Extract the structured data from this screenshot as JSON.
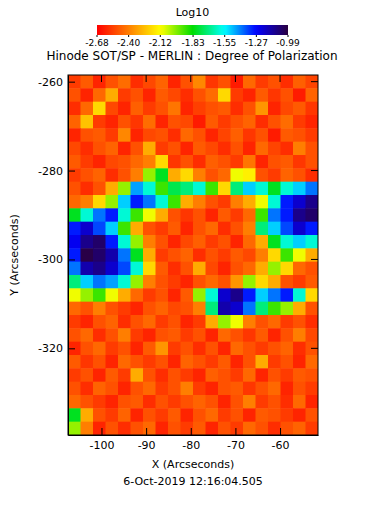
{
  "chart_data": {
    "type": "heatmap",
    "title": "Hinode SOT/SP - MERLIN : Degree of Polarization",
    "xlabel": "X (Arcseconds)",
    "ylabel": "Y (Arcseconds)",
    "annotation": "6-Oct-2019 12:16:04.505",
    "xlim": [
      -107.5,
      -51.5
    ],
    "ylim": [
      -339.5,
      -258.5
    ],
    "xticks": [
      -100,
      -90,
      -80,
      -70,
      -60
    ],
    "yticks": [
      -260,
      -280,
      -300,
      -320
    ],
    "x": [
      -106.1,
      -103.3,
      -100.5,
      -97.7,
      -94.9,
      -92.1,
      -89.3,
      -86.5,
      -83.7,
      -80.9,
      -78.1,
      -75.3,
      -72.5,
      -69.7,
      -66.9,
      -64.1,
      -61.3,
      -58.5,
      -55.7,
      -52.9
    ],
    "y": [
      -260,
      -263,
      -266,
      -269,
      -272,
      -275,
      -278,
      -281,
      -284,
      -287,
      -290,
      -293,
      -296,
      -299,
      -302,
      -305,
      -308,
      -311,
      -314,
      -317,
      -320,
      -323,
      -326,
      -329,
      -332,
      -335,
      -338
    ],
    "z": [
      [
        -2.55,
        -2.48,
        -2.6,
        -2.5,
        -2.44,
        -2.58,
        -2.52,
        -2.46,
        -2.6,
        -2.5,
        -2.38,
        -2.56,
        -2.5,
        -2.62,
        -2.45,
        -2.55,
        -2.5,
        -2.58,
        -2.47,
        -2.53
      ],
      [
        -2.5,
        -2.6,
        -2.45,
        -2.3,
        -2.55,
        -2.5,
        -2.6,
        -2.48,
        -2.52,
        -2.58,
        -2.5,
        -2.44,
        -2.2,
        -2.55,
        -2.6,
        -2.48,
        -2.56,
        -2.5,
        -2.62,
        -2.46
      ],
      [
        -2.58,
        -2.45,
        -2.2,
        -2.52,
        -2.6,
        -2.47,
        -2.55,
        -2.5,
        -2.42,
        -2.6,
        -2.54,
        -2.5,
        -2.48,
        -2.58,
        -2.5,
        -2.35,
        -2.6,
        -2.52,
        -2.48,
        -2.56
      ],
      [
        -2.46,
        -2.25,
        -2.55,
        -2.6,
        -2.5,
        -2.56,
        -2.44,
        -2.6,
        -2.5,
        -2.52,
        -2.62,
        -2.48,
        -2.55,
        -2.5,
        -2.46,
        -2.58,
        -2.5,
        -2.44,
        -2.55,
        -2.6
      ],
      [
        -2.6,
        -2.5,
        -2.48,
        -2.55,
        -2.38,
        -2.6,
        -2.52,
        -2.5,
        -2.58,
        -2.45,
        -2.5,
        -2.6,
        -2.53,
        -2.47,
        -2.56,
        -2.5,
        -2.62,
        -2.48,
        -2.5,
        -2.55
      ],
      [
        -2.52,
        -2.58,
        -2.5,
        -2.46,
        -2.6,
        -2.5,
        -2.3,
        -2.55,
        -2.5,
        -2.6,
        -2.48,
        -2.52,
        -2.58,
        -2.5,
        -2.6,
        -2.45,
        -2.53,
        -2.58,
        -2.4,
        -2.5
      ],
      [
        -2.48,
        -2.55,
        -2.6,
        -2.52,
        -2.5,
        -2.45,
        -2.4,
        -2.2,
        -2.56,
        -2.5,
        -2.58,
        -2.47,
        -2.5,
        -2.55,
        -2.42,
        -2.6,
        -2.5,
        -2.48,
        -2.56,
        -2.5
      ],
      [
        -2.55,
        -2.5,
        -2.46,
        -2.58,
        -2.5,
        -2.4,
        -2.0,
        -1.8,
        -2.3,
        -2.2,
        -2.4,
        -2.5,
        -2.45,
        -2.1,
        -2.15,
        -2.5,
        -2.55,
        -2.46,
        -2.5,
        -2.58
      ],
      [
        -2.5,
        -2.58,
        -2.5,
        -2.3,
        -2.0,
        -1.45,
        -1.6,
        -1.9,
        -1.75,
        -1.7,
        -1.6,
        -1.9,
        -2.2,
        -1.7,
        -1.5,
        -1.6,
        -1.8,
        -1.6,
        -1.5,
        -1.4
      ],
      [
        -2.45,
        -2.4,
        -2.2,
        -2.0,
        -1.5,
        -1.3,
        -1.4,
        -1.6,
        -1.9,
        -2.3,
        -2.4,
        -2.5,
        -2.55,
        -2.4,
        -2.3,
        -2.1,
        -1.6,
        -1.3,
        -1.2,
        -1.1
      ],
      [
        -1.8,
        -1.6,
        -1.4,
        -1.3,
        -1.6,
        -1.9,
        -2.1,
        -2.3,
        -2.5,
        -2.56,
        -2.5,
        -2.6,
        -2.48,
        -2.55,
        -2.45,
        -1.9,
        -1.4,
        -1.3,
        -1.1,
        -1.05
      ],
      [
        -1.3,
        -1.2,
        -1.35,
        -1.5,
        -1.9,
        -2.3,
        -2.5,
        -2.55,
        -2.48,
        -2.6,
        -2.5,
        -2.45,
        -2.58,
        -2.5,
        -2.4,
        -1.7,
        -1.5,
        -1.35,
        -1.2,
        -1.3
      ],
      [
        -1.25,
        -1.1,
        -1.05,
        -1.3,
        -1.6,
        -2.0,
        -2.4,
        -2.5,
        -2.6,
        -2.52,
        -2.47,
        -2.55,
        -2.5,
        -2.6,
        -2.45,
        -2.3,
        -1.8,
        -1.6,
        -1.5,
        -1.6
      ],
      [
        -1.3,
        -1.0,
        -1.05,
        -1.15,
        -1.4,
        -1.8,
        -2.3,
        -2.55,
        -2.5,
        -2.46,
        -2.58,
        -2.5,
        -2.55,
        -2.48,
        -2.52,
        -2.4,
        -2.2,
        -1.9,
        -2.1,
        -2.3
      ],
      [
        -1.4,
        -1.15,
        -1.1,
        -1.2,
        -1.35,
        -1.6,
        -2.2,
        -2.48,
        -2.58,
        -2.5,
        -2.3,
        -2.52,
        -2.6,
        -2.5,
        -2.45,
        -2.3,
        -2.0,
        -2.2,
        -2.45,
        -2.5
      ],
      [
        -1.7,
        -1.5,
        -1.4,
        -1.45,
        -1.6,
        -2.0,
        -2.4,
        -2.5,
        -2.55,
        -2.6,
        -2.5,
        -2.45,
        -2.5,
        -2.35,
        -2.0,
        -2.2,
        -2.3,
        -2.5,
        -2.55,
        -2.48
      ],
      [
        -2.1,
        -2.0,
        -1.9,
        -2.1,
        -2.3,
        -2.45,
        -2.55,
        -2.5,
        -2.6,
        -2.48,
        -2.0,
        -1.6,
        -1.2,
        -1.1,
        -1.3,
        -1.5,
        -1.4,
        -1.3,
        -1.6,
        -2.2
      ],
      [
        -2.45,
        -2.5,
        -2.4,
        -2.5,
        -2.55,
        -2.6,
        -2.5,
        -2.46,
        -2.52,
        -2.5,
        -2.4,
        -1.7,
        -1.15,
        -1.2,
        -1.4,
        -1.7,
        -1.9,
        -2.0,
        -2.3,
        -2.5
      ],
      [
        -2.55,
        -2.6,
        -2.5,
        -2.46,
        -2.58,
        -2.5,
        -2.45,
        -2.55,
        -2.5,
        -2.6,
        -2.55,
        -2.3,
        -2.0,
        -2.1,
        -2.4,
        -2.5,
        -2.45,
        -2.55,
        -2.5,
        -2.58
      ],
      [
        -2.5,
        -2.45,
        -2.58,
        -2.5,
        -2.4,
        -2.55,
        -2.6,
        -2.5,
        -2.48,
        -2.55,
        -2.5,
        -2.6,
        -2.45,
        -2.5,
        -2.56,
        -2.48,
        -2.6,
        -2.5,
        -2.4,
        -2.52
      ],
      [
        -2.6,
        -2.5,
        -2.45,
        -2.55,
        -2.5,
        -2.6,
        -2.48,
        -2.35,
        -2.55,
        -2.5,
        -2.58,
        -2.5,
        -2.6,
        -2.45,
        -2.5,
        -2.55,
        -2.5,
        -2.46,
        -2.58,
        -2.5
      ],
      [
        -2.48,
        -2.56,
        -2.5,
        -2.6,
        -2.45,
        -2.5,
        -2.55,
        -2.5,
        -2.6,
        -2.46,
        -2.5,
        -2.55,
        -2.48,
        -2.6,
        -2.5,
        -2.3,
        -2.55,
        -2.5,
        -2.6,
        -2.45
      ],
      [
        -2.55,
        -2.5,
        -2.6,
        -2.48,
        -2.55,
        -2.3,
        -2.5,
        -2.58,
        -2.5,
        -2.55,
        -2.6,
        -2.47,
        -2.5,
        -2.55,
        -2.45,
        -2.6,
        -2.5,
        -2.55,
        -2.48,
        -2.5
      ],
      [
        -2.5,
        -2.58,
        -2.46,
        -2.5,
        -2.6,
        -2.5,
        -2.45,
        -2.55,
        -2.5,
        -2.4,
        -2.55,
        -2.6,
        -2.5,
        -2.48,
        -2.56,
        -2.5,
        -2.45,
        -2.6,
        -2.5,
        -2.55
      ],
      [
        -2.45,
        -2.5,
        -2.55,
        -2.6,
        -2.5,
        -2.48,
        -2.58,
        -2.5,
        -2.55,
        -2.5,
        -2.46,
        -2.5,
        -2.6,
        -2.5,
        -2.4,
        -2.55,
        -2.5,
        -2.58,
        -2.45,
        -2.6
      ],
      [
        -1.8,
        -2.3,
        -2.5,
        -2.55,
        -2.46,
        -2.6,
        -2.5,
        -2.55,
        -2.48,
        -2.6,
        -2.5,
        -2.45,
        -2.55,
        -2.5,
        -2.6,
        -2.48,
        -2.5,
        -2.55,
        -2.6,
        -2.5
      ],
      [
        -2.0,
        -2.4,
        -2.6,
        -2.5,
        -2.58,
        -2.5,
        -2.45,
        -2.6,
        -2.5,
        -2.55,
        -2.48,
        -2.6,
        -2.5,
        -2.55,
        -2.45,
        -2.5,
        -2.58,
        -2.5,
        -2.46,
        -2.55
      ]
    ],
    "colorbar": {
      "title": "Log10",
      "range": [
        -2.68,
        -0.99
      ],
      "ticks": [
        -2.68,
        {
          "value": -2.4,
          "label": "-2.40"
        },
        -2.12,
        -1.83,
        -1.55,
        -1.27,
        -0.99
      ]
    }
  }
}
